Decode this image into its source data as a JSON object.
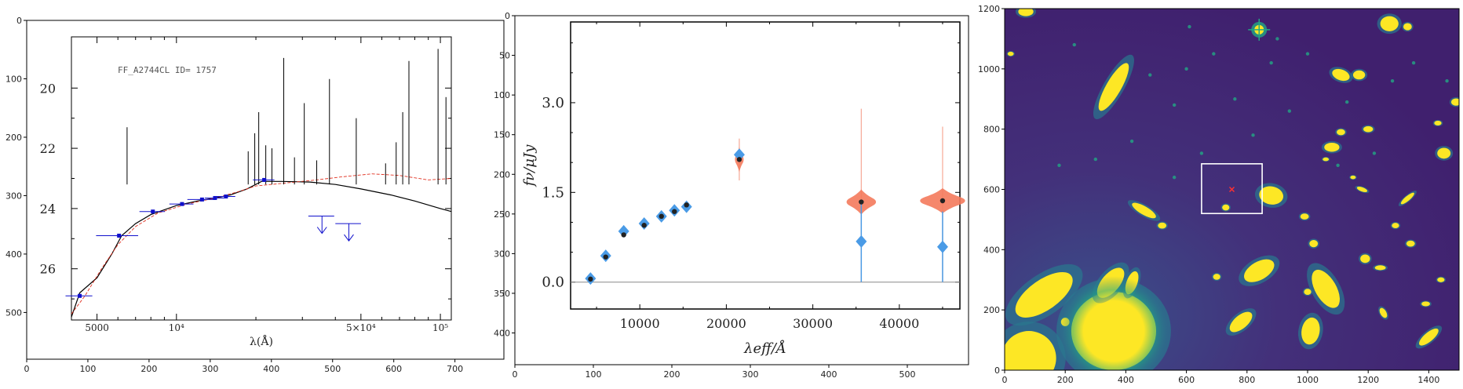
{
  "chart_data": [
    {
      "type": "scatter",
      "panel": "sed-magnitudes",
      "outer_axes": {
        "xlim": [
          0,
          780
        ],
        "ylim": [
          580,
          0
        ],
        "xticks": [
          "0",
          "100",
          "200",
          "300",
          "400",
          "500",
          "600",
          "700"
        ],
        "yticks": [
          "0",
          "100",
          "200",
          "300",
          "400",
          "500"
        ]
      },
      "inner_axes": {
        "title": "FF_A2744CL ID= 1757",
        "xlabel": "λ(Å)",
        "xscale": "log",
        "xlim": [
          4000,
          110000
        ],
        "ylim": [
          27.7,
          18.3
        ],
        "xticks": [
          {
            "value": 5000,
            "label": "5000"
          },
          {
            "value": 10000,
            "label": "10⁴"
          },
          {
            "value": 50000,
            "label": "5×10⁴"
          },
          {
            "value": 100000,
            "label": "10⁵"
          }
        ],
        "yticks": [
          {
            "value": 20,
            "label": "20"
          },
          {
            "value": 22,
            "label": "22"
          },
          {
            "value": 24,
            "label": "24"
          },
          {
            "value": 26,
            "label": "26"
          }
        ]
      },
      "photometry": [
        {
          "x": 4300,
          "y": 26.9,
          "xerr": 500
        },
        {
          "x": 6060,
          "y": 24.9,
          "xerr": 1100
        },
        {
          "x": 8140,
          "y": 24.1,
          "xerr": 900
        },
        {
          "x": 10500,
          "y": 23.85,
          "xerr": 1100
        },
        {
          "x": 12500,
          "y": 23.7,
          "xerr": 1500
        },
        {
          "x": 14000,
          "y": 23.65,
          "xerr": 1200
        },
        {
          "x": 15400,
          "y": 23.6,
          "xerr": 1300
        },
        {
          "x": 21500,
          "y": 23.05,
          "xerr": 2000
        }
      ],
      "upper_limits": [
        {
          "x": 35600,
          "y": 24.25,
          "xerr": 4000
        },
        {
          "x": 45000,
          "y": 24.5,
          "xerr": 5000
        }
      ],
      "colors": {
        "photometry": "#1010cc",
        "best_fit": "#000000",
        "alt_fit": "#e03020"
      }
    },
    {
      "type": "scatter",
      "panel": "flux-density",
      "outer_axes": {
        "xlim": [
          0,
          578
        ],
        "ylim": [
          440,
          0
        ],
        "xticks": [
          "0",
          "100",
          "200",
          "300",
          "400",
          "500"
        ],
        "yticks": [
          "0",
          "50",
          "100",
          "150",
          "200",
          "250",
          "300",
          "350",
          "400"
        ]
      },
      "inner_axes": {
        "xlabel": "λeff/Å",
        "ylabel": "fν/μJy",
        "xlim": [
          2000,
          47000
        ],
        "ylim": [
          -0.45,
          4.35
        ],
        "xticks": [
          "10000",
          "20000",
          "30000",
          "40000"
        ],
        "yticks": [
          "0.0",
          "1.5",
          "3.0"
        ]
      },
      "series": [
        {
          "name": "",
          "marker": "diamond",
          "color": "#4a9be6",
          "x": [
            4300,
            6060,
            8140,
            10500,
            12500,
            14000,
            15400,
            21500,
            35600,
            45000
          ],
          "y": [
            0.06,
            0.44,
            0.85,
            0.98,
            1.1,
            1.2,
            1.26,
            2.13,
            0.68,
            0.59
          ],
          "yerr": [
            0.04,
            0.04,
            0.04,
            0.04,
            0.04,
            0.04,
            0.04,
            0.06,
            0.68,
            0.59
          ]
        },
        {
          "name": "",
          "marker": "dot",
          "color": "#222222",
          "x": [
            4300,
            6060,
            8140,
            10500,
            12500,
            14000,
            15400,
            21500,
            35600,
            45000
          ],
          "y": [
            0.05,
            0.42,
            0.79,
            0.95,
            1.1,
            1.18,
            1.29,
            2.05,
            1.34,
            1.36
          ]
        }
      ],
      "distributions": [
        {
          "x": 21500,
          "center": 2.05,
          "low": 1.7,
          "high": 2.4,
          "halfwidth": 500
        },
        {
          "x": 35600,
          "center": 1.34,
          "low": 0.0,
          "high": 2.9,
          "halfwidth": 1700
        },
        {
          "x": 45000,
          "center": 1.36,
          "low": 0.0,
          "high": 2.6,
          "halfwidth": 2600
        }
      ],
      "colors": {
        "violin": "#f47a5c",
        "violin_line": "#f6a896",
        "zero_line": "#888888"
      }
    },
    {
      "type": "heatmap",
      "panel": "cutout-image",
      "xlim": [
        0,
        1500
      ],
      "ylim": [
        0,
        1200
      ],
      "xticks": [
        "0",
        "200",
        "400",
        "600",
        "800",
        "1000",
        "1200",
        "1400"
      ],
      "yticks": [
        "0",
        "200",
        "400",
        "600",
        "800",
        "1000",
        "1200"
      ],
      "colormap": [
        "#46327e",
        "#2a788e",
        "#22a884",
        "#7ad151",
        "#fde725"
      ],
      "highlight_box": {
        "x0": 650,
        "x1": 850,
        "y0": 520,
        "y1": 685
      },
      "target": {
        "x": 750,
        "y": 600
      }
    }
  ]
}
